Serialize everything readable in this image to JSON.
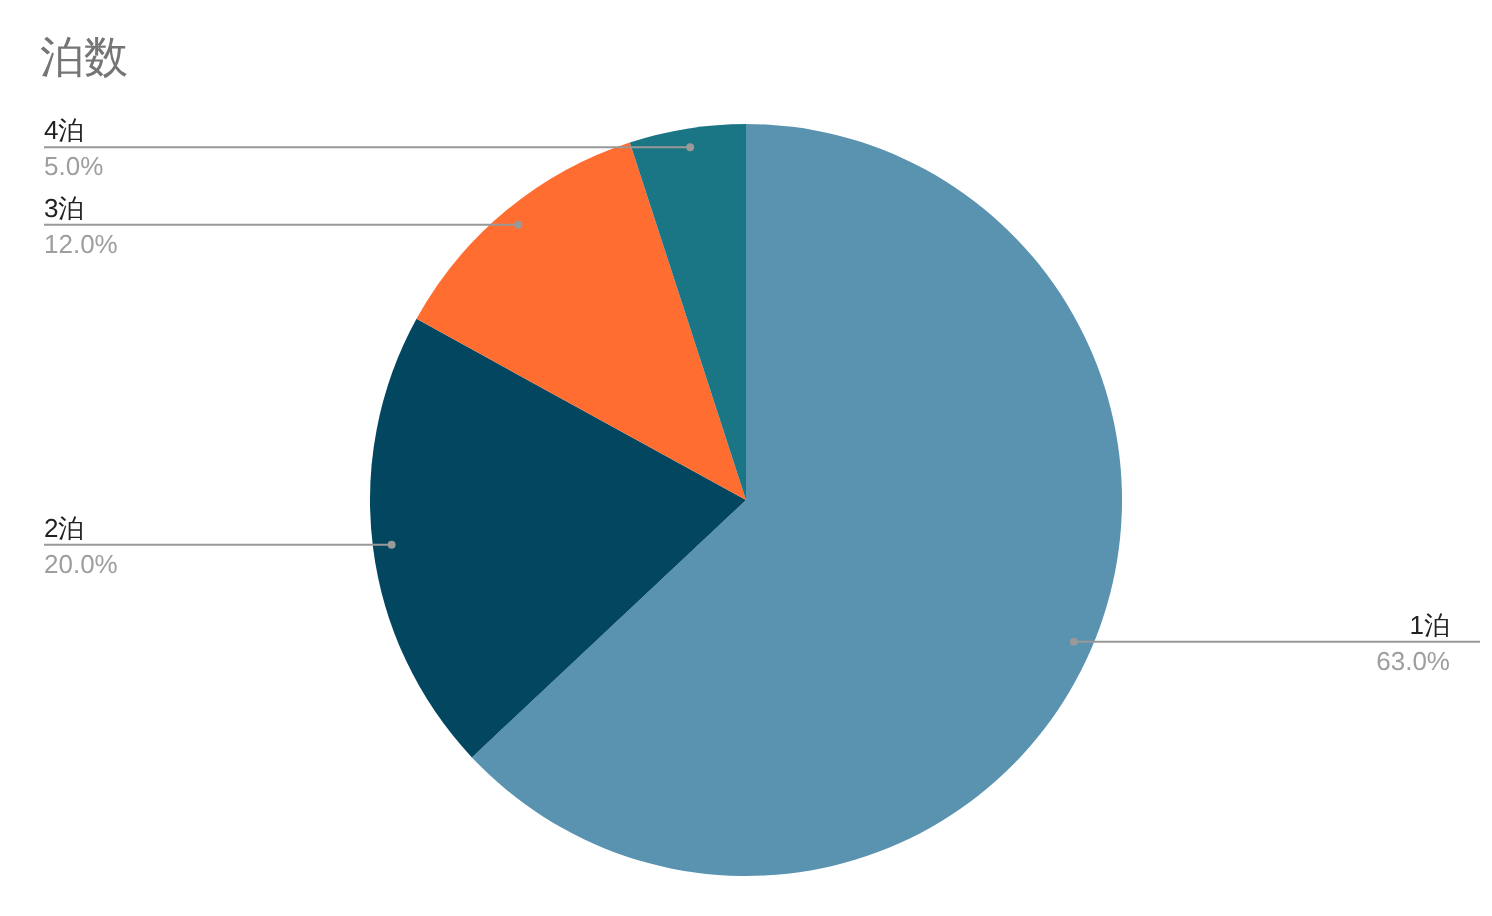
{
  "chart_data": {
    "type": "pie",
    "title": "泊数",
    "categories": [
      "1泊",
      "2泊",
      "3泊",
      "4泊"
    ],
    "values": [
      63,
      20,
      12,
      5
    ],
    "value_labels": [
      "63.0%",
      "20.0%",
      "12.0%",
      "5.0%"
    ],
    "colors": [
      "#5a93b0",
      "#02475f",
      "#ff6d31",
      "#1a7585"
    ],
    "legend": false
  }
}
